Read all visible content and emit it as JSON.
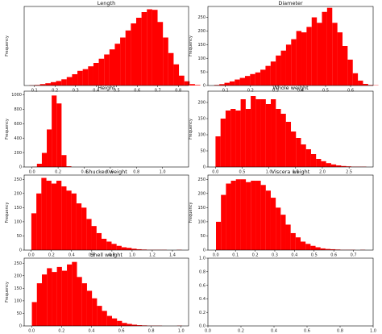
{
  "colors": {
    "bar": "#ff0000",
    "axis": "#000000",
    "background": "#ffffff"
  },
  "chart_data": [
    {
      "type": "bar",
      "title": "Length",
      "ylabel": "Frequency",
      "xlim": [
        0.05,
        0.85
      ],
      "ylim": [
        0,
        280
      ],
      "xticks": [
        "0.1",
        "0.2",
        "0.3",
        "0.4",
        "0.5",
        "0.6",
        "0.7",
        "0.8"
      ],
      "xtick_values": [
        0.1,
        0.2,
        0.3,
        0.4,
        0.5,
        0.6,
        0.7,
        0.8
      ],
      "yticks": [],
      "bins_x0": 0.075,
      "bin_width": 0.026,
      "values": [
        1,
        2,
        5,
        8,
        12,
        16,
        22,
        30,
        40,
        52,
        58,
        68,
        80,
        95,
        110,
        128,
        148,
        170,
        195,
        220,
        240,
        260,
        270,
        268,
        225,
        170,
        115,
        75,
        35,
        15,
        5,
        2
      ]
    },
    {
      "type": "bar",
      "title": "Diameter",
      "ylabel": "Frequency",
      "xlim": [
        0.03,
        0.69
      ],
      "ylim": [
        0,
        290
      ],
      "xticks": [
        "0.1",
        "0.2",
        "0.3",
        "0.4",
        "0.5",
        "0.6"
      ],
      "xtick_values": [
        0.1,
        0.2,
        0.3,
        0.4,
        0.5,
        0.6
      ],
      "yticks": [
        "0",
        "50",
        "100",
        "150",
        "200",
        "250"
      ],
      "ytick_values": [
        0,
        50,
        100,
        150,
        200,
        250
      ],
      "bins_x0": 0.055,
      "bin_width": 0.0205,
      "values": [
        2,
        5,
        10,
        15,
        22,
        28,
        35,
        42,
        48,
        58,
        72,
        88,
        110,
        128,
        150,
        170,
        200,
        195,
        215,
        250,
        230,
        270,
        285,
        230,
        195,
        145,
        95,
        45,
        18,
        6,
        2,
        1
      ]
    },
    {
      "type": "bar",
      "title": "Height",
      "ylabel": "Frequency",
      "xlim": [
        -0.06,
        1.2
      ],
      "ylim": [
        0,
        1050
      ],
      "xticks": [
        "0.0",
        "0.2",
        "0.4",
        "0.6",
        "0.8",
        "1.0"
      ],
      "xtick_values": [
        0.0,
        0.2,
        0.4,
        0.6,
        0.8,
        1.0
      ],
      "yticks": [
        "0",
        "200",
        "400",
        "600",
        "800",
        "1000"
      ],
      "ytick_values": [
        0,
        200,
        400,
        600,
        800,
        1000
      ],
      "bins_x0": 0.0,
      "bin_width": 0.0377,
      "values": [
        3,
        45,
        195,
        520,
        990,
        880,
        165,
        10,
        0,
        0,
        0,
        0,
        0,
        0,
        0,
        0,
        0,
        0,
        0,
        0,
        0,
        0,
        0,
        0,
        0,
        0,
        0,
        0,
        0,
        0
      ]
    },
    {
      "type": "bar",
      "title": "Whole weight",
      "ylabel": "Frequency",
      "xlim": [
        -0.14,
        2.95
      ],
      "ylim": [
        0,
        235
      ],
      "xticks": [
        "0.0",
        "0.5",
        "1.0",
        "1.5",
        "2.0",
        "2.5"
      ],
      "xtick_values": [
        0.0,
        0.5,
        1.0,
        1.5,
        2.0,
        2.5
      ],
      "yticks": [
        "0",
        "50",
        "100",
        "150",
        "200"
      ],
      "ytick_values": [
        0,
        50,
        100,
        150,
        200
      ],
      "bins_x0": 0.002,
      "bin_width": 0.094,
      "values": [
        95,
        150,
        175,
        180,
        175,
        210,
        180,
        220,
        210,
        210,
        195,
        210,
        180,
        165,
        140,
        110,
        90,
        70,
        55,
        40,
        25,
        18,
        12,
        8,
        5,
        3,
        2,
        1,
        1,
        1
      ]
    },
    {
      "type": "bar",
      "title": "Shucked weight",
      "ylabel": "Frequency",
      "xlim": [
        -0.07,
        1.56
      ],
      "ylim": [
        0,
        265
      ],
      "xticks": [
        "0.0",
        "0.2",
        "0.4",
        "0.6",
        "0.8",
        "1.0",
        "1.2",
        "1.4"
      ],
      "xtick_values": [
        0.0,
        0.2,
        0.4,
        0.6,
        0.8,
        1.0,
        1.2,
        1.4
      ],
      "yticks": [
        "0",
        "50",
        "100",
        "150",
        "200",
        "250"
      ],
      "ytick_values": [
        0,
        50,
        100,
        150,
        200,
        250
      ],
      "bins_x0": 0.001,
      "bin_width": 0.0497,
      "values": [
        130,
        200,
        255,
        245,
        235,
        245,
        225,
        210,
        200,
        165,
        150,
        110,
        85,
        60,
        40,
        30,
        22,
        15,
        10,
        8,
        5,
        3,
        2,
        1,
        1,
        1,
        1,
        0,
        0,
        1
      ]
    },
    {
      "type": "bar",
      "title": "Viscera weight",
      "ylabel": "Frequency",
      "xlim": [
        -0.04,
        0.8
      ],
      "ylim": [
        0,
        265
      ],
      "xticks": [
        "0.0",
        "0.1",
        "0.2",
        "0.3",
        "0.4",
        "0.5",
        "0.6",
        "0.7"
      ],
      "xtick_values": [
        0.0,
        0.1,
        0.2,
        0.3,
        0.4,
        0.5,
        0.6,
        0.7
      ],
      "yticks": [
        "0",
        "50",
        "100",
        "150",
        "200",
        "250"
      ],
      "ytick_values": [
        0,
        50,
        100,
        150,
        200,
        250
      ],
      "bins_x0": 0.001,
      "bin_width": 0.0253,
      "values": [
        100,
        195,
        235,
        245,
        250,
        250,
        240,
        245,
        245,
        230,
        210,
        185,
        150,
        125,
        90,
        60,
        45,
        30,
        22,
        15,
        10,
        6,
        4,
        3,
        2,
        1,
        1,
        1,
        0,
        1
      ]
    },
    {
      "type": "bar",
      "title": "Shell weight",
      "ylabel": "Frequency",
      "xlim": [
        -0.05,
        1.05
      ],
      "ylim": [
        0,
        270
      ],
      "xticks": [
        "0.0",
        "0.2",
        "0.4",
        "0.6",
        "0.8",
        "1.0"
      ],
      "xtick_values": [
        0.0,
        0.2,
        0.4,
        0.6,
        0.8,
        1.0
      ],
      "yticks": [
        "0",
        "50",
        "100",
        "150",
        "200",
        "250"
      ],
      "ytick_values": [
        0,
        50,
        100,
        150,
        200,
        250
      ],
      "bins_x0": 0.0015,
      "bin_width": 0.0335,
      "values": [
        95,
        170,
        205,
        230,
        215,
        235,
        220,
        245,
        255,
        195,
        170,
        140,
        110,
        80,
        60,
        40,
        30,
        20,
        12,
        8,
        5,
        3,
        2,
        1,
        1,
        1,
        0,
        0,
        0,
        1
      ]
    },
    {
      "type": "bar",
      "title": "",
      "ylabel": "",
      "xlim": [
        0,
        1
      ],
      "ylim": [
        0,
        1
      ],
      "xticks": [
        "0.0",
        "0.2",
        "0.4",
        "0.6",
        "0.8",
        "1.0"
      ],
      "xtick_values": [
        0.0,
        0.2,
        0.4,
        0.6,
        0.8,
        1.0
      ],
      "yticks": [
        "0.0",
        "0.2",
        "0.4",
        "0.6",
        "0.8",
        "1.0"
      ],
      "ytick_values": [
        0.0,
        0.2,
        0.4,
        0.6,
        0.8,
        1.0
      ],
      "bins_x0": 0,
      "bin_width": 0.1,
      "values": []
    }
  ]
}
